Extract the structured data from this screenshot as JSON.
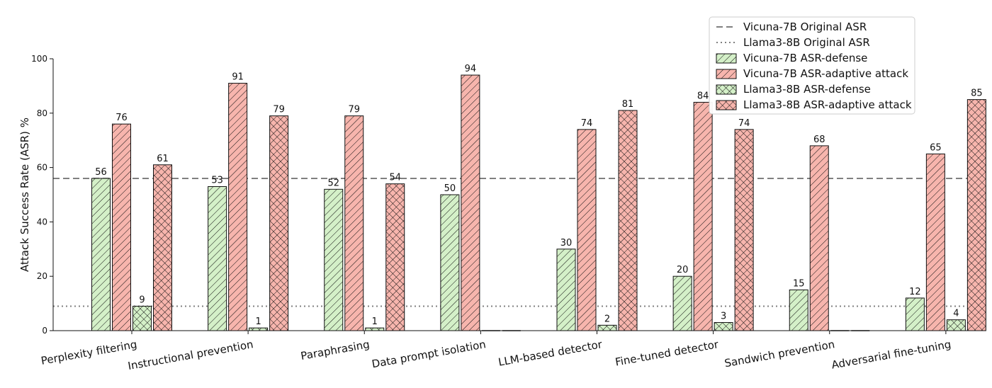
{
  "chart_data": {
    "type": "bar",
    "ylabel": "Attack Success Rate (ASR) %",
    "xlabel": "",
    "ylim": [
      0,
      100
    ],
    "yticks": [
      0,
      20,
      40,
      60,
      80,
      100
    ],
    "grid": false,
    "legend_position": "top-right",
    "categories": [
      "Perplexity filtering",
      "Instructional prevention",
      "Paraphrasing",
      "Data prompt isolation",
      "LLM-based detector",
      "Fine-tuned detector",
      "Sandwich prevention",
      "Adversarial fine-tuning"
    ],
    "series": [
      {
        "name": "Vicuna-7B ASR-defense",
        "values": [
          56,
          53,
          52,
          50,
          30,
          20,
          15,
          12
        ],
        "color": "#d4f0c8",
        "hatch": "diag"
      },
      {
        "name": "Vicuna-7B ASR-adaptive attack",
        "values": [
          76,
          91,
          79,
          94,
          74,
          84,
          68,
          65
        ],
        "color": "#f7b5ad",
        "hatch": "diag"
      },
      {
        "name": "Llama3-8B ASR-defense",
        "values": [
          9,
          1,
          1,
          null,
          2,
          3,
          null,
          4
        ],
        "color": "#d4f0c8",
        "hatch": "cross"
      },
      {
        "name": "Llama3-8B ASR-adaptive attack",
        "values": [
          61,
          79,
          54,
          null,
          81,
          74,
          null,
          85
        ],
        "color": "#f7b5ad",
        "hatch": "cross"
      }
    ],
    "reference_lines": [
      {
        "name": "Vicuna-7B Original ASR",
        "value": 56,
        "style": "dashed",
        "color": "#808080"
      },
      {
        "name": "Llama3-8B Original ASR",
        "value": 9,
        "style": "dotted",
        "color": "#808080"
      }
    ]
  }
}
